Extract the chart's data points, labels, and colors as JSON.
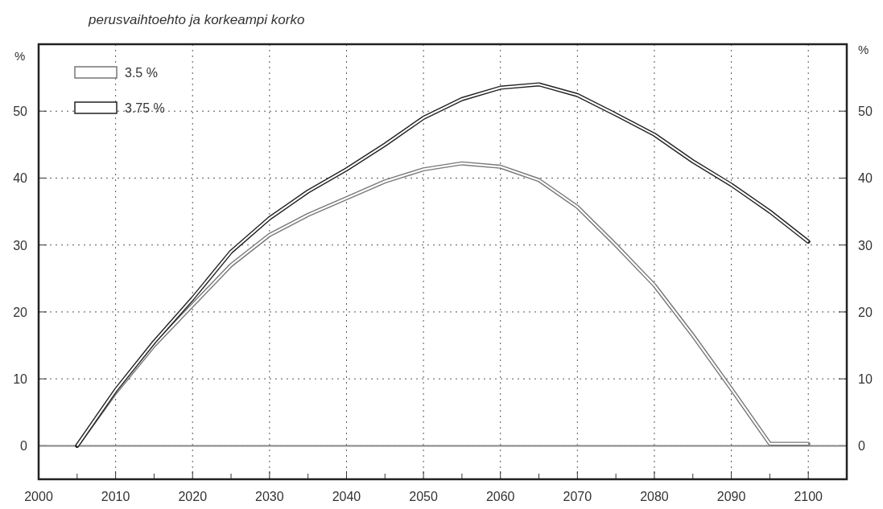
{
  "chart_data": {
    "type": "line",
    "title": "perusvaihtoehto ja korkeampi korko",
    "ylabel": "%",
    "y2label": "%",
    "x": [
      2005,
      2010,
      2015,
      2020,
      2025,
      2030,
      2035,
      2040,
      2045,
      2050,
      2055,
      2060,
      2065,
      2070,
      2075,
      2080,
      2085,
      2090,
      2095,
      2100
    ],
    "series": [
      {
        "name": "3.5 %",
        "color": "#777777",
        "values": [
          0,
          8,
          15,
          21,
          27,
          31.5,
          34.5,
          37,
          39.5,
          41.3,
          42.2,
          41.7,
          39.7,
          35.7,
          30,
          24,
          16.5,
          8.5,
          0.3,
          0.3
        ]
      },
      {
        "name": "3.75 %",
        "color": "#222222",
        "values": [
          0,
          8.3,
          15.5,
          22,
          29,
          34,
          38,
          41.3,
          45,
          49,
          51.8,
          53.5,
          54,
          52.4,
          49.5,
          46.5,
          42.5,
          39,
          35,
          30.5
        ]
      }
    ],
    "xlim": [
      2000,
      2105
    ],
    "xticks": [
      2000,
      {
        "value": 2005,
        "label": null
      },
      2010,
      {
        "value": 2015,
        "label": null
      },
      2020,
      {
        "value": 2025,
        "label": null
      },
      2030,
      {
        "value": 2035,
        "label": null
      },
      2040,
      {
        "value": 2045,
        "label": null
      },
      2050,
      {
        "value": 2055,
        "label": null
      },
      2060,
      {
        "value": 2065,
        "label": null
      },
      2070,
      {
        "value": 2075,
        "label": null
      },
      2080,
      {
        "value": 2085,
        "label": null
      },
      2090,
      {
        "value": 2095,
        "label": null
      },
      2100
    ],
    "ylim": [
      -5,
      60
    ],
    "yticks": [
      0,
      10,
      20,
      30,
      40,
      50
    ],
    "y2lim": [
      -5,
      60
    ],
    "y2ticks": [
      0,
      10,
      20,
      30,
      40,
      50
    ],
    "ref_lines": [
      {
        "axis": "y",
        "value": 0,
        "color": "#888888",
        "line_style": "solid"
      }
    ],
    "grid": true,
    "legend": "top left"
  }
}
